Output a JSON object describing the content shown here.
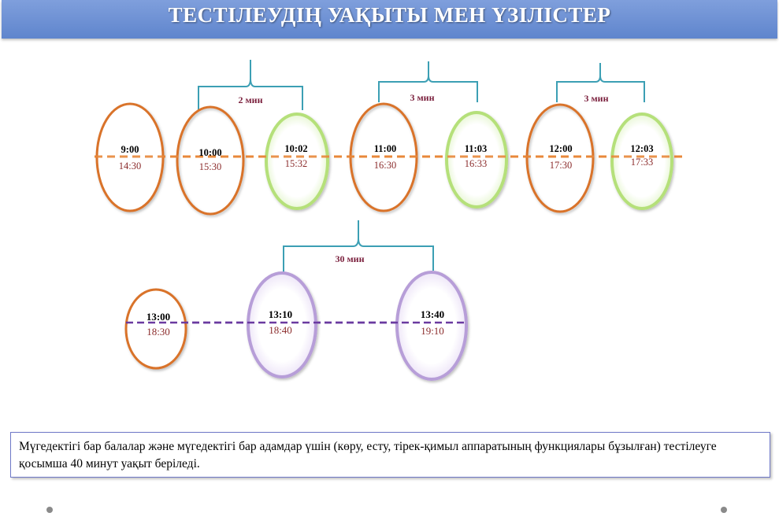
{
  "header": {
    "title": "ТЕСТІЛЕУДІҢ УАҚЫТЫ МЕН ҮЗІЛІСТЕР"
  },
  "colors": {
    "banner": "#6a8fd4",
    "orange": "#d9732a",
    "green": "#b5e07a",
    "purple": "#b79ed8",
    "purple_line": "#6a3aa0",
    "bracket": "#3c9fb4",
    "time_main": "#000000",
    "time_alt": "#8b2c2c",
    "break_label": "#7a1f3c"
  },
  "row1": {
    "circles": [
      {
        "main": "9:00",
        "alt": "14:30",
        "kind": "start"
      },
      {
        "main": "10:00",
        "alt": "15:30",
        "kind": "start"
      },
      {
        "main": "10:02",
        "alt": "15:32",
        "kind": "break"
      },
      {
        "main": "11:00",
        "alt": "16:30",
        "kind": "start"
      },
      {
        "main": "11:03",
        "alt": "16:33",
        "kind": "break"
      },
      {
        "main": "12:00",
        "alt": "17:30",
        "kind": "start"
      },
      {
        "main": "12:03",
        "alt": "17:33",
        "kind": "break"
      }
    ],
    "breaks": [
      "2 мин",
      "3 мин",
      "3 мин"
    ]
  },
  "row2": {
    "circles": [
      {
        "main": "13:00",
        "alt": "18:30",
        "kind": "start"
      },
      {
        "main": "13:10",
        "alt": "18:40",
        "kind": "break"
      },
      {
        "main": "13:40",
        "alt": "19:10",
        "kind": "break"
      }
    ],
    "breaks": [
      "30 мин"
    ]
  },
  "note": {
    "text": " Мүгедектігі бар балалар және мүгедектігі бар адамдар үшін (көру, есту, тірек-қимыл аппаратының функциялары бұзылған) тестілеуге қосымша 40 минут уақыт беріледі."
  }
}
